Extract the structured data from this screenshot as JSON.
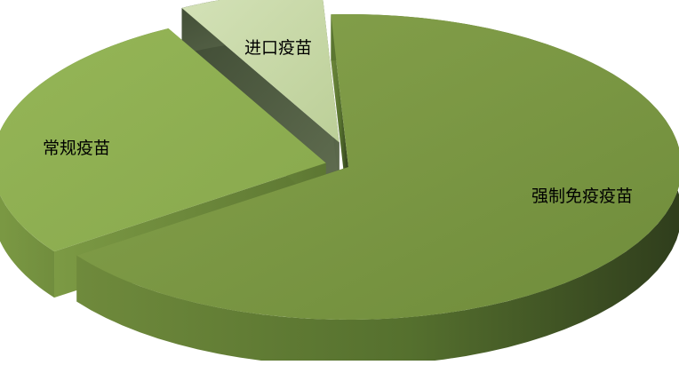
{
  "chart_data": {
    "type": "pie",
    "style": "3d-exploded",
    "title": "",
    "categories": [
      "强制免疫疫苗",
      "常规疫苗",
      "进口疫苗"
    ],
    "values": [
      66,
      27,
      7
    ],
    "unit": "%",
    "legend": "none",
    "colors": {
      "slice_top": [
        "#7e9a46",
        "#8fb052",
        "#c8d8a8"
      ],
      "slice_side": [
        "#44572a",
        "#5f7a35",
        "#4f5b45"
      ]
    }
  }
}
